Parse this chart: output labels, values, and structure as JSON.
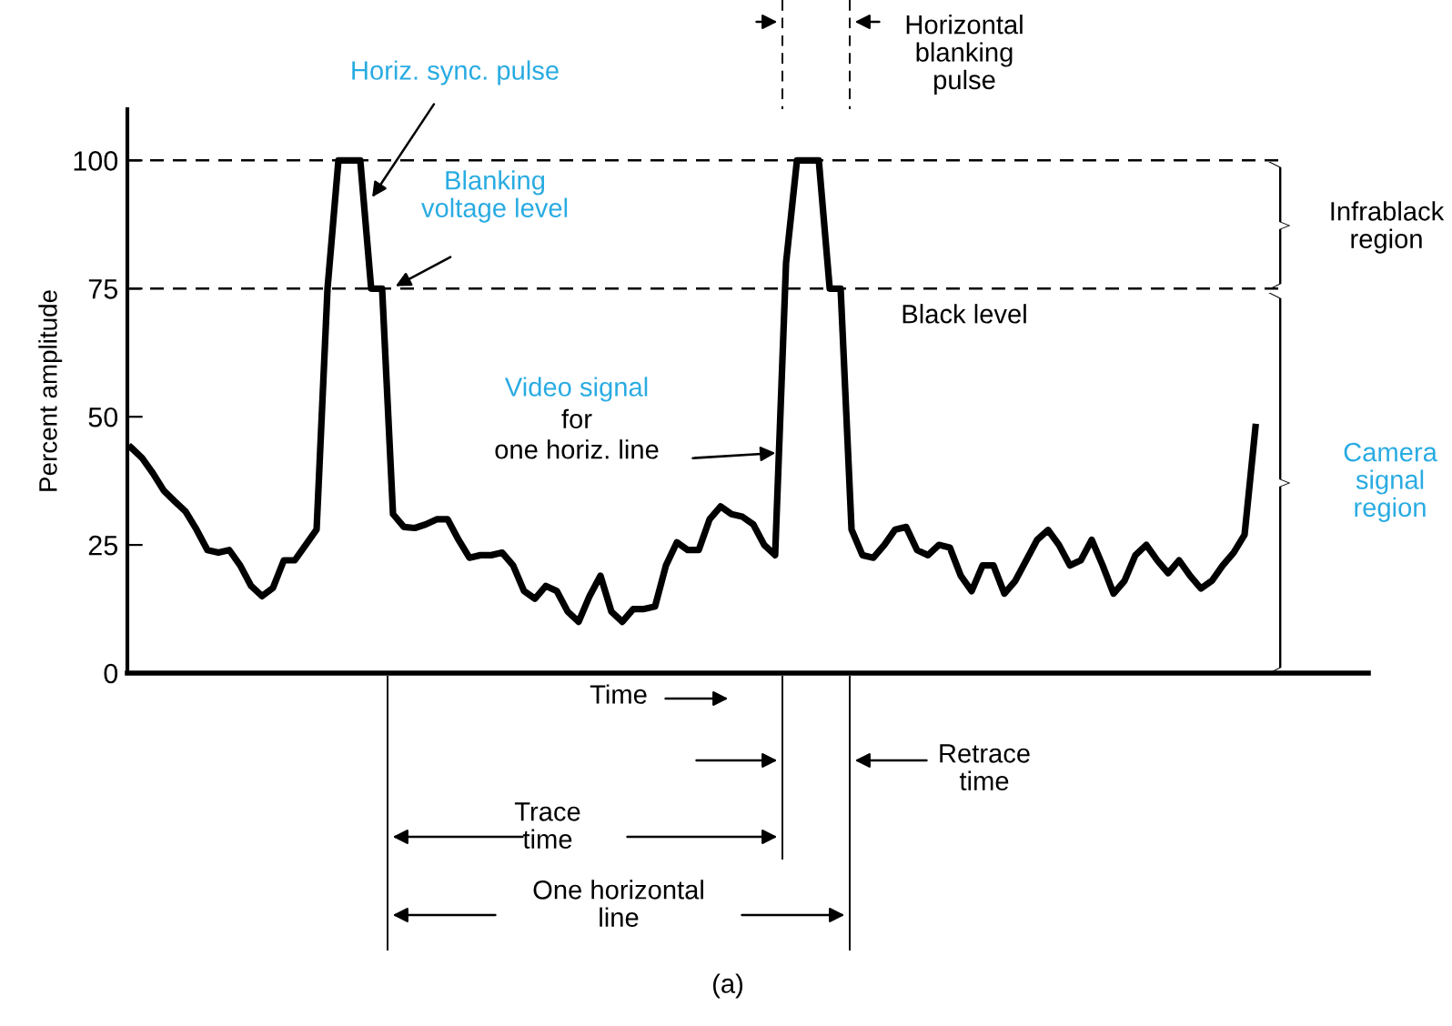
{
  "chart_data": {
    "type": "line",
    "ylabel": "Percent amplitude",
    "categories": [
      null,
      null,
      null,
      null,
      null,
      null,
      null,
      null,
      null,
      null,
      null,
      null,
      null,
      null,
      null,
      null,
      null,
      null,
      null,
      null,
      null,
      null,
      null,
      null,
      null,
      null,
      null,
      null,
      null,
      null,
      null,
      null,
      null,
      null,
      null,
      null,
      null,
      null,
      null,
      null,
      null,
      null,
      null,
      null,
      null,
      null,
      null,
      null,
      null,
      null,
      null,
      null,
      null,
      null,
      null,
      null,
      null,
      null,
      null,
      null,
      null,
      null,
      null,
      null,
      null,
      null,
      null,
      null,
      null,
      null,
      null,
      null,
      null,
      null,
      null,
      null,
      null,
      null,
      null,
      null,
      null,
      null,
      null,
      null,
      null,
      null,
      null,
      null,
      null,
      null,
      null,
      null,
      null,
      null,
      null,
      null,
      null,
      null,
      null,
      null,
      null,
      null,
      null,
      null
    ],
    "series": [
      {
        "color": "#000000",
        "values": [
          44,
          42,
          39,
          35.6,
          33.5,
          31.5,
          28,
          24,
          23.5,
          24,
          21,
          17,
          15,
          16.6,
          22,
          22,
          25,
          28,
          75,
          100,
          100,
          100,
          75,
          75,
          31,
          28.5,
          28.3,
          29,
          30,
          30,
          26,
          22.5,
          23,
          23,
          23.5,
          21,
          16,
          14.5,
          17,
          16,
          12,
          10,
          15,
          19,
          12,
          10,
          12.5,
          12.5,
          13,
          21,
          25.5,
          24,
          24,
          30,
          32.5,
          31,
          30.5,
          29,
          25,
          23,
          80,
          100,
          100,
          100,
          75,
          75,
          28,
          23,
          22.5,
          25,
          28,
          28.5,
          24,
          23,
          25,
          24.5,
          19,
          16,
          21,
          21,
          15.5,
          18,
          22,
          26,
          27.9,
          25,
          21,
          22,
          26,
          21,
          15.5,
          18,
          23,
          25,
          22,
          19.5,
          22,
          19,
          16.5,
          18,
          21,
          23.5,
          27,
          48
        ]
      }
    ],
    "ylim": [
      0,
      110
    ],
    "yticks": [
      0,
      25,
      50,
      75,
      100
    ],
    "grid": false,
    "legend": false,
    "marker": "none",
    "line_style": "solid",
    "ref_lines": [
      {
        "axis": "y",
        "value": 100,
        "label": null,
        "line_style": "dashed"
      },
      {
        "axis": "y",
        "value": 75,
        "label": "Black level",
        "line_style": "dashed"
      }
    ],
    "annotations": [
      "Horiz. sync. pulse",
      "Blanking\nvoltage level",
      "Video signal\nfor\none horiz. line",
      "Horizontal\nblanking\npulse",
      "Time",
      "Retrace\ntime",
      "Trace\ntime",
      "One horizontal\nline",
      "(a)",
      "Infrablack\nregion",
      "Camera\nsignal\nregion"
    ]
  }
}
